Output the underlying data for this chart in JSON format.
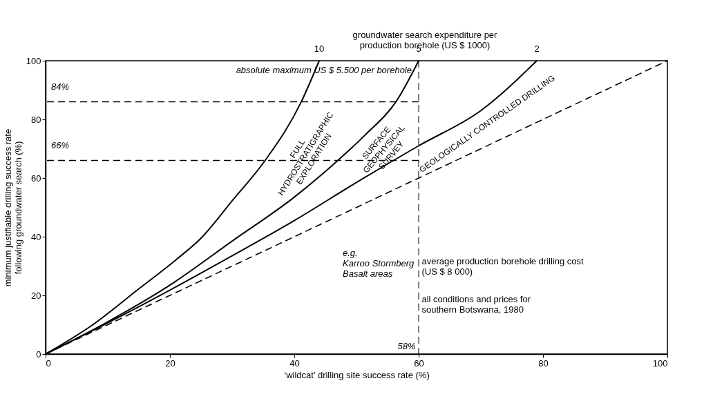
{
  "chart_data": {
    "type": "line",
    "xlabel": "‘wildcat’ drilling site success rate (%)",
    "ylabel": "minimum justifiable drilling success rate\nfollowing groundwater search (%)",
    "xlim": [
      0,
      100
    ],
    "xticks": [
      0,
      20,
      40,
      60,
      80,
      100
    ],
    "ylim": [
      0,
      100
    ],
    "yticks": [
      0,
      20,
      40,
      60,
      80,
      100
    ],
    "series": [
      {
        "color": "#000000",
        "line_style": "solid",
        "x": [
          0,
          7.4,
          15.1,
          21.3,
          24.9,
          30.1,
          35.2,
          41.1,
          44
        ],
        "values": [
          0,
          9.7,
          22.4,
          32.7,
          39.3,
          52.5,
          65.7,
          85.9,
          100
        ]
      },
      {
        "color": "#000000",
        "line_style": "solid",
        "x": [
          0,
          10,
          20,
          30,
          40,
          47,
          51.3,
          56.5,
          60
        ],
        "values": [
          0,
          11,
          23.5,
          38.5,
          53.5,
          66,
          74.5,
          86.5,
          100
        ]
      },
      {
        "color": "#000000",
        "line_style": "solid",
        "x": [
          0,
          10,
          20,
          30,
          40,
          50,
          60,
          70,
          79
        ],
        "values": [
          0,
          10.6,
          21.8,
          33.5,
          45.5,
          58.5,
          71,
          83,
          100
        ]
      },
      {
        "color": "#000000",
        "line_style": "dashed",
        "x": [
          0,
          100
        ],
        "values": [
          0,
          100
        ]
      },
      {
        "color": "#000000",
        "line_style": "dashed",
        "x": [
          60,
          0
        ],
        "values": [
          86,
          86
        ]
      },
      {
        "color": "#000000",
        "line_style": "dashed",
        "x": [
          60,
          0
        ],
        "values": [
          66,
          66
        ]
      }
    ],
    "ref_lines": [
      {
        "axis": "x",
        "value": 60,
        "line_style": "dashed",
        "color": "#000000"
      }
    ],
    "annotations": [
      {
        "text": "84%",
        "x": 0,
        "y": 86
      },
      {
        "text": "66%",
        "x": 0,
        "y": 66
      },
      {
        "text": "absolute maximum US $ 5.500 per borehole",
        "x": 60,
        "y": 100
      },
      {
        "text": "10",
        "x": 44,
        "y": 100
      },
      {
        "text": "5",
        "x": 60,
        "y": 100
      },
      {
        "text": "2",
        "x": 79,
        "y": 100
      },
      {
        "text": "e.g.\nKarroo Stormberg\nBasalt areas",
        "x": 60,
        "y": 25
      },
      "groundwater search expenditure per\nproduction borehole (US $ 1000)",
      "FULL\nHYDROSTRATIGRAPHIC\nEXPLORATION",
      "SURFACE\nGEOPHYSICAL\nSURVEY",
      "GEOLOGICALLY CONTROLLED DRILLING",
      "58%",
      "average production borehole drilling cost\n(US $ 8 000)",
      "all conditions and prices for\nsouthern Botswana, 1980"
    ],
    "grid": false,
    "legend": false,
    "marker": "none"
  }
}
